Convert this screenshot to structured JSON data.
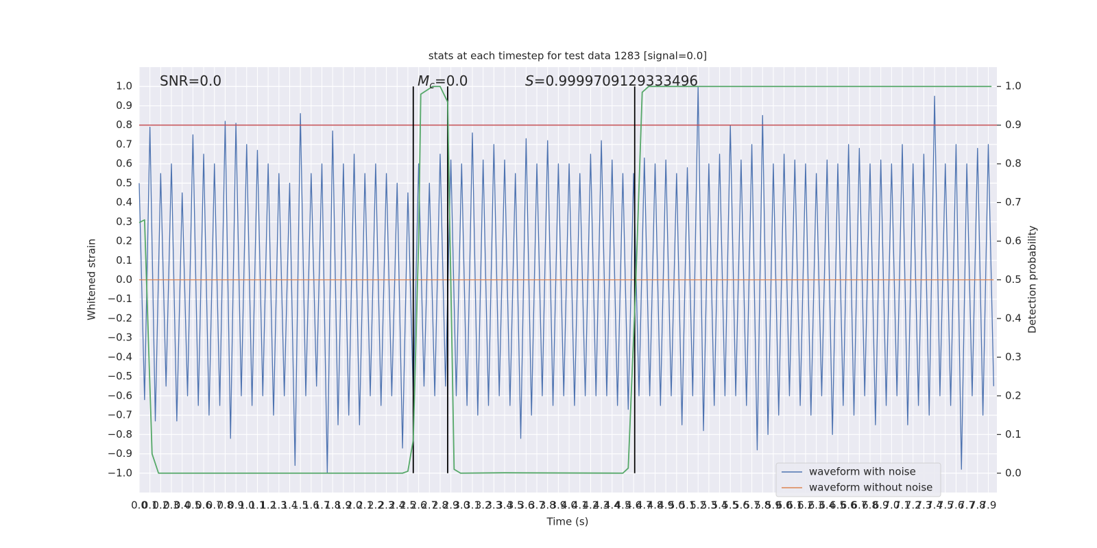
{
  "chart_data": {
    "type": "line",
    "title": "stats at each timestep for test data 1283 [signal=0.0]",
    "x_label": "Time (s)",
    "y_label": "Whitened strain",
    "y2_label": "Detection probability",
    "xlim": [
      0,
      7.98
    ],
    "ylim": [
      -1.1,
      1.1
    ],
    "y2lim": [
      -0.05,
      1.05
    ],
    "grid": true,
    "legend": "lower right",
    "xticks": [
      {
        "value": 0,
        "label": "0.0"
      },
      0.1,
      0.2,
      0.3,
      0.4,
      0.5,
      0.6,
      0.7,
      0.8,
      0.9,
      {
        "value": 1,
        "label": "1.0"
      },
      1.1,
      1.2,
      1.3,
      1.4,
      1.5,
      1.6,
      1.7,
      1.8,
      1.9,
      {
        "value": 2,
        "label": "2.0"
      },
      2.1,
      2.2,
      2.3,
      2.4,
      2.5,
      2.6,
      2.7,
      2.8,
      2.9,
      {
        "value": 3,
        "label": "3.0"
      },
      3.1,
      3.2,
      3.3,
      3.4,
      3.5,
      3.6,
      3.7,
      3.8,
      3.9,
      {
        "value": 4,
        "label": "4.0"
      },
      4.1,
      4.2,
      4.3,
      4.4,
      4.5,
      4.6,
      4.7,
      4.8,
      4.9,
      {
        "value": 5,
        "label": "5.0"
      },
      5.1,
      5.2,
      5.3,
      5.4,
      5.5,
      5.6,
      5.7,
      5.8,
      5.9,
      {
        "value": 6,
        "label": "6.0"
      },
      6.1,
      6.2,
      6.3,
      6.4,
      6.5,
      6.6,
      6.7,
      6.8,
      6.9,
      {
        "value": 7,
        "label": "7.0"
      },
      7.1,
      7.2,
      7.3,
      7.4,
      7.5,
      7.6,
      7.7,
      7.8,
      7.9
    ],
    "yticks": [
      {
        "value": -1,
        "label": "−1.0"
      },
      {
        "value": -0.9,
        "label": "−0.9"
      },
      {
        "value": -0.8,
        "label": "−0.8"
      },
      {
        "value": -0.7,
        "label": "−0.7"
      },
      {
        "value": -0.6,
        "label": "−0.6"
      },
      {
        "value": -0.5,
        "label": "−0.5"
      },
      {
        "value": -0.4,
        "label": "−0.4"
      },
      {
        "value": -0.3,
        "label": "−0.3"
      },
      {
        "value": -0.2,
        "label": "−0.2"
      },
      {
        "value": -0.1,
        "label": "−0.1"
      },
      {
        "value": 0,
        "label": "0.0"
      },
      0.1,
      0.2,
      0.3,
      0.4,
      0.5,
      0.6,
      0.7,
      0.8,
      0.9,
      {
        "value": 1,
        "label": "1.0"
      }
    ],
    "y2ticks": [
      {
        "value": 0,
        "label": "0.0"
      },
      0.1,
      0.2,
      0.3,
      0.4,
      0.5,
      0.6,
      0.7,
      0.8,
      0.9,
      {
        "value": 1,
        "label": "1.0"
      }
    ],
    "series": [
      {
        "name": "waveform with noise",
        "color": "#4c72b0",
        "x": [
          0,
          0.05,
          0.1,
          0.15,
          0.2,
          0.25,
          0.3,
          0.35,
          0.4,
          0.45,
          0.5,
          0.55,
          0.6,
          0.65,
          0.7,
          0.75,
          0.8,
          0.85,
          0.9,
          0.95,
          1,
          1.05,
          1.1,
          1.15,
          1.2,
          1.25,
          1.3,
          1.35,
          1.4,
          1.45,
          1.5,
          1.55,
          1.6,
          1.65,
          1.7,
          1.75,
          1.8,
          1.85,
          1.9,
          1.95,
          2,
          2.05,
          2.1,
          2.15,
          2.2,
          2.25,
          2.3,
          2.35,
          2.4,
          2.45,
          2.5,
          2.55,
          2.6,
          2.65,
          2.7,
          2.75,
          2.8,
          2.85,
          2.9,
          2.95,
          3,
          3.05,
          3.1,
          3.15,
          3.2,
          3.25,
          3.3,
          3.35,
          3.4,
          3.45,
          3.5,
          3.55,
          3.6,
          3.65,
          3.7,
          3.75,
          3.8,
          3.85,
          3.9,
          3.95,
          4,
          4.05,
          4.1,
          4.15,
          4.2,
          4.25,
          4.3,
          4.35,
          4.4,
          4.45,
          4.5,
          4.55,
          4.6,
          4.65,
          4.7,
          4.75,
          4.8,
          4.85,
          4.9,
          4.95,
          5,
          5.05,
          5.1,
          5.15,
          5.2,
          5.25,
          5.3,
          5.35,
          5.4,
          5.45,
          5.5,
          5.55,
          5.6,
          5.65,
          5.7,
          5.75,
          5.8,
          5.85,
          5.9,
          5.95,
          6,
          6.05,
          6.1,
          6.15,
          6.2,
          6.25,
          6.3,
          6.35,
          6.4,
          6.45,
          6.5,
          6.55,
          6.6,
          6.65,
          6.7,
          6.75,
          6.8,
          6.85,
          6.9,
          6.95,
          7,
          7.05,
          7.1,
          7.15,
          7.2,
          7.25,
          7.3,
          7.35,
          7.4,
          7.45,
          7.5,
          7.55,
          7.6,
          7.65,
          7.7,
          7.75,
          7.8,
          7.85,
          7.9,
          7.95
        ],
        "values": [
          0.5,
          -0.62,
          0.79,
          -0.73,
          0.55,
          -0.55,
          0.6,
          -0.73,
          0.45,
          -0.6,
          0.75,
          -0.65,
          0.65,
          -0.7,
          0.6,
          -0.65,
          0.82,
          -0.82,
          0.81,
          -0.6,
          0.7,
          -0.65,
          0.67,
          -0.6,
          0.6,
          -0.7,
          0.55,
          -0.6,
          0.5,
          -0.96,
          0.86,
          -0.6,
          0.55,
          -0.55,
          0.6,
          -1.0,
          0.77,
          -0.75,
          0.6,
          -0.7,
          0.65,
          -0.75,
          0.55,
          -0.6,
          0.6,
          -0.65,
          0.55,
          -0.6,
          0.5,
          -0.87,
          0.45,
          -0.6,
          0.6,
          -0.55,
          0.5,
          -0.6,
          0.65,
          -0.55,
          0.62,
          -0.6,
          0.6,
          -0.65,
          0.76,
          -0.7,
          0.62,
          -0.65,
          0.7,
          -0.6,
          0.62,
          -0.65,
          0.55,
          -0.82,
          0.73,
          -0.7,
          0.6,
          -0.6,
          0.72,
          -0.65,
          0.6,
          -0.6,
          0.6,
          -0.65,
          0.55,
          -0.6,
          0.65,
          -0.6,
          0.72,
          -0.6,
          0.62,
          -0.65,
          0.55,
          -0.67,
          0.55,
          -0.6,
          0.63,
          -0.6,
          0.6,
          -0.65,
          0.62,
          -0.6,
          0.55,
          -0.75,
          0.58,
          -0.6,
          1.0,
          -0.78,
          0.6,
          -0.65,
          0.65,
          -0.6,
          0.8,
          -0.6,
          0.62,
          -0.65,
          0.7,
          -0.88,
          0.85,
          -0.8,
          0.6,
          -0.7,
          0.65,
          -0.6,
          0.62,
          -0.65,
          0.6,
          -0.7,
          0.55,
          -0.6,
          0.62,
          -0.8,
          0.6,
          -0.65,
          0.7,
          -0.7,
          0.68,
          -0.6,
          0.6,
          -0.75,
          0.62,
          -0.65,
          0.6,
          -0.6,
          0.7,
          -0.75,
          0.6,
          -0.65,
          0.65,
          -0.7,
          0.95,
          -0.6,
          0.6,
          -0.65,
          0.7,
          -0.98,
          0.6,
          -0.6,
          0.68,
          -0.7,
          0.7,
          -0.55
        ]
      },
      {
        "name": "waveform without noise",
        "color": "#dd8452",
        "x": [
          0,
          7.95
        ],
        "values": [
          0,
          0
        ]
      }
    ],
    "detection_probability": {
      "color": "#55a868",
      "axis": "y2",
      "x": [
        0,
        0.05,
        0.12,
        0.18,
        2.45,
        2.5,
        2.55,
        2.6,
        2.62,
        2.73,
        2.8,
        2.87,
        2.93,
        2.99,
        3.4,
        4.5,
        4.55,
        4.62,
        4.68,
        4.74,
        7.93
      ],
      "values": [
        0.648,
        0.655,
        0.05,
        0,
        0,
        0.005,
        0.086,
        0.6,
        0.98,
        1.0,
        1.0,
        0.96,
        0.01,
        0,
        0.001,
        0,
        0.013,
        0.49,
        0.985,
        1.0,
        1.0
      ]
    },
    "hlines": [
      {
        "value": 0.9,
        "axis": "y2",
        "color": "#c44e52"
      }
    ],
    "vlines": {
      "values": [
        2.55,
        2.87,
        4.61
      ],
      "color": "#000000"
    },
    "annotations": [
      {
        "text": "SNR=0.0"
      },
      {
        "symbol": "M",
        "subscript": "c",
        "text": "=0.0"
      },
      {
        "symbol": "S",
        "text": "=0.9999709129333496"
      }
    ]
  }
}
